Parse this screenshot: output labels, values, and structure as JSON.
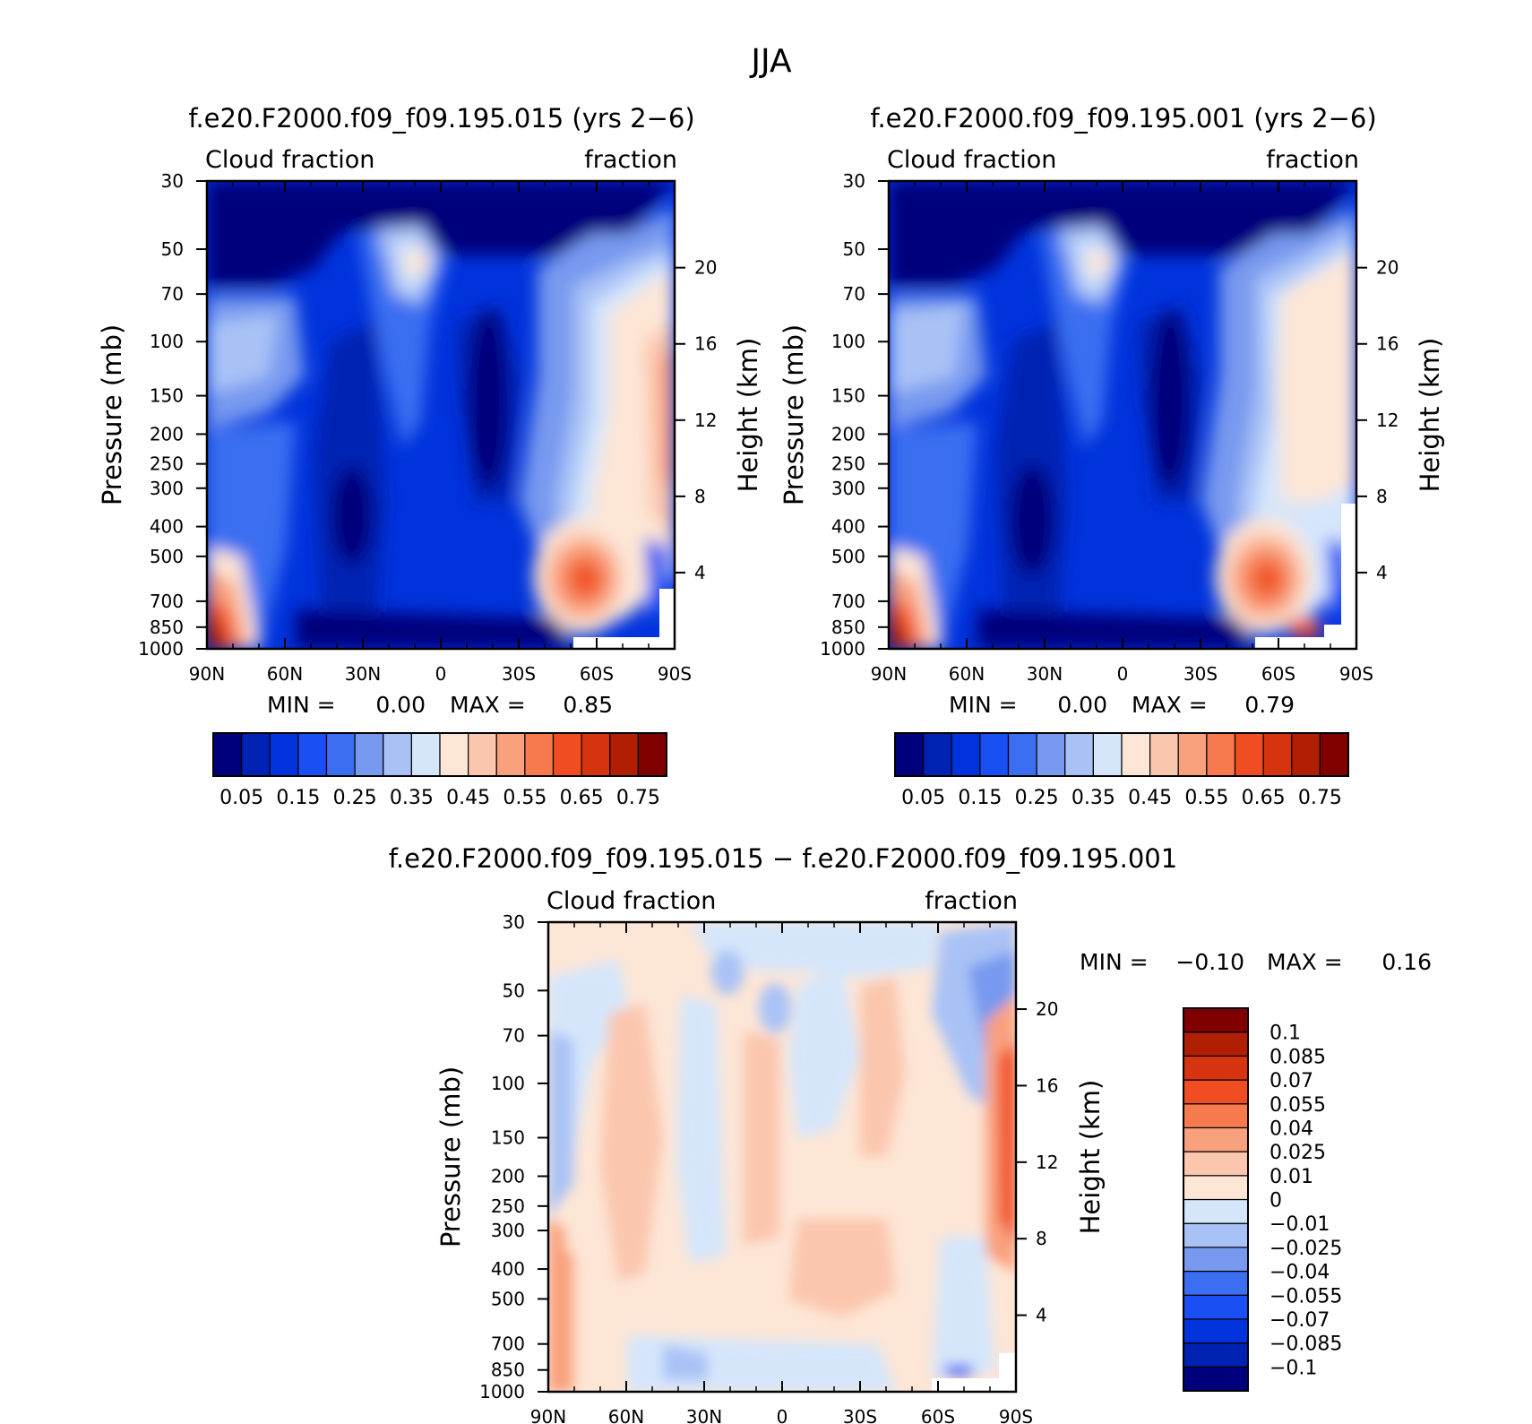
{
  "figure": {
    "title": "JJA"
  },
  "chart_data": [
    {
      "type": "heatmap",
      "title": "f.e20.F2000.f09_f09.195.015 (yrs 2−6)",
      "left_label": "Cloud fraction",
      "right_label": "fraction",
      "ylabel": "Pressure (mb)",
      "ylabel2": "Height (km)",
      "x_ticks": [
        "90N",
        "60N",
        "30N",
        "0",
        "30S",
        "60S",
        "90S"
      ],
      "x_values": [
        90,
        60,
        30,
        0,
        -30,
        -60,
        -90
      ],
      "y_ticks": [
        "30",
        "50",
        "70",
        "100",
        "150",
        "200",
        "250",
        "300",
        "400",
        "500",
        "700",
        "850",
        "1000"
      ],
      "y_values": [
        30,
        50,
        70,
        100,
        150,
        200,
        250,
        300,
        400,
        500,
        700,
        850,
        1000
      ],
      "y2_ticks": [
        "20",
        "16",
        "12",
        "8",
        "4"
      ],
      "y2_values": [
        20,
        16,
        12,
        8,
        4
      ],
      "ylim": [
        1000,
        30
      ],
      "xlim": [
        90,
        -90
      ],
      "stats": {
        "min_label": "MIN =",
        "min": "0.00",
        "max_label": "MAX =",
        "max": "0.85"
      },
      "colorbar": {
        "labels": [
          "0.05",
          "0.15",
          "0.25",
          "0.35",
          "0.45",
          "0.55",
          "0.65",
          "0.75"
        ],
        "levels": [
          0,
          0.05,
          0.1,
          0.15,
          0.2,
          0.25,
          0.3,
          0.35,
          0.4,
          0.45,
          0.5,
          0.55,
          0.6,
          0.65,
          0.7,
          0.75,
          0.8
        ],
        "colors": [
          "#00007c",
          "#0022b2",
          "#0033dc",
          "#1a4ff4",
          "#3b6ef1",
          "#7799ef",
          "#a9c2f6",
          "#d5e6fb",
          "#fde6d6",
          "#fbc6ae",
          "#f9a07d",
          "#f67a4e",
          "#f04e22",
          "#d63410",
          "#b01f04",
          "#800000"
        ]
      }
    },
    {
      "type": "heatmap",
      "title": "f.e20.F2000.f09_f09.195.001 (yrs 2−6)",
      "left_label": "Cloud fraction",
      "right_label": "fraction",
      "ylabel": "Pressure (mb)",
      "ylabel2": "Height (km)",
      "x_ticks": [
        "90N",
        "60N",
        "30N",
        "0",
        "30S",
        "60S",
        "90S"
      ],
      "x_values": [
        90,
        60,
        30,
        0,
        -30,
        -60,
        -90
      ],
      "y_ticks": [
        "30",
        "50",
        "70",
        "100",
        "150",
        "200",
        "250",
        "300",
        "400",
        "500",
        "700",
        "850",
        "1000"
      ],
      "y_values": [
        30,
        50,
        70,
        100,
        150,
        200,
        250,
        300,
        400,
        500,
        700,
        850,
        1000
      ],
      "y2_ticks": [
        "20",
        "16",
        "12",
        "8",
        "4"
      ],
      "y2_values": [
        20,
        16,
        12,
        8,
        4
      ],
      "ylim": [
        1000,
        30
      ],
      "xlim": [
        90,
        -90
      ],
      "stats": {
        "min_label": "MIN =",
        "min": "0.00",
        "max_label": "MAX =",
        "max": "0.79"
      },
      "colorbar": {
        "labels": [
          "0.05",
          "0.15",
          "0.25",
          "0.35",
          "0.45",
          "0.55",
          "0.65",
          "0.75"
        ],
        "levels": [
          0,
          0.05,
          0.1,
          0.15,
          0.2,
          0.25,
          0.3,
          0.35,
          0.4,
          0.45,
          0.5,
          0.55,
          0.6,
          0.65,
          0.7,
          0.75,
          0.8
        ],
        "colors": [
          "#00007c",
          "#0022b2",
          "#0033dc",
          "#1a4ff4",
          "#3b6ef1",
          "#7799ef",
          "#a9c2f6",
          "#d5e6fb",
          "#fde6d6",
          "#fbc6ae",
          "#f9a07d",
          "#f67a4e",
          "#f04e22",
          "#d63410",
          "#b01f04",
          "#800000"
        ]
      }
    },
    {
      "type": "heatmap",
      "title": "f.e20.F2000.f09_f09.195.015 − f.e20.F2000.f09_f09.195.001",
      "left_label": "Cloud fraction",
      "right_label": "fraction",
      "ylabel": "Pressure (mb)",
      "ylabel2": "Height (km)",
      "x_ticks": [
        "90N",
        "60N",
        "30N",
        "0",
        "30S",
        "60S",
        "90S"
      ],
      "x_values": [
        90,
        60,
        30,
        0,
        -30,
        -60,
        -90
      ],
      "y_ticks": [
        "30",
        "50",
        "70",
        "100",
        "150",
        "200",
        "250",
        "300",
        "400",
        "500",
        "700",
        "850",
        "1000"
      ],
      "y_values": [
        30,
        50,
        70,
        100,
        150,
        200,
        250,
        300,
        400,
        500,
        700,
        850,
        1000
      ],
      "y2_ticks": [
        "20",
        "16",
        "12",
        "8",
        "4"
      ],
      "y2_values": [
        20,
        16,
        12,
        8,
        4
      ],
      "ylim": [
        1000,
        30
      ],
      "xlim": [
        90,
        -90
      ],
      "stats": {
        "min_label": "MIN =",
        "min": "−0.10",
        "max_label": "MAX =",
        "max": "0.16"
      },
      "colorbar": {
        "labels": [
          "0.1",
          "0.085",
          "0.07",
          "0.055",
          "0.04",
          "0.025",
          "0.01",
          "0",
          "−0.01",
          "−0.025",
          "−0.04",
          "−0.055",
          "−0.07",
          "−0.085",
          "−0.1"
        ],
        "levels": [
          -0.115,
          -0.1,
          -0.085,
          -0.07,
          -0.055,
          -0.04,
          -0.025,
          -0.01,
          0,
          0.01,
          0.025,
          0.04,
          0.055,
          0.07,
          0.085,
          0.1,
          0.115
        ],
        "colors": [
          "#00007c",
          "#0022b2",
          "#0033dc",
          "#1a4ff4",
          "#3b6ef1",
          "#7799ef",
          "#a9c2f6",
          "#d5e6fb",
          "#fde6d6",
          "#fbc6ae",
          "#f9a07d",
          "#f67a4e",
          "#f04e22",
          "#d63410",
          "#b01f04",
          "#800000"
        ]
      }
    }
  ]
}
